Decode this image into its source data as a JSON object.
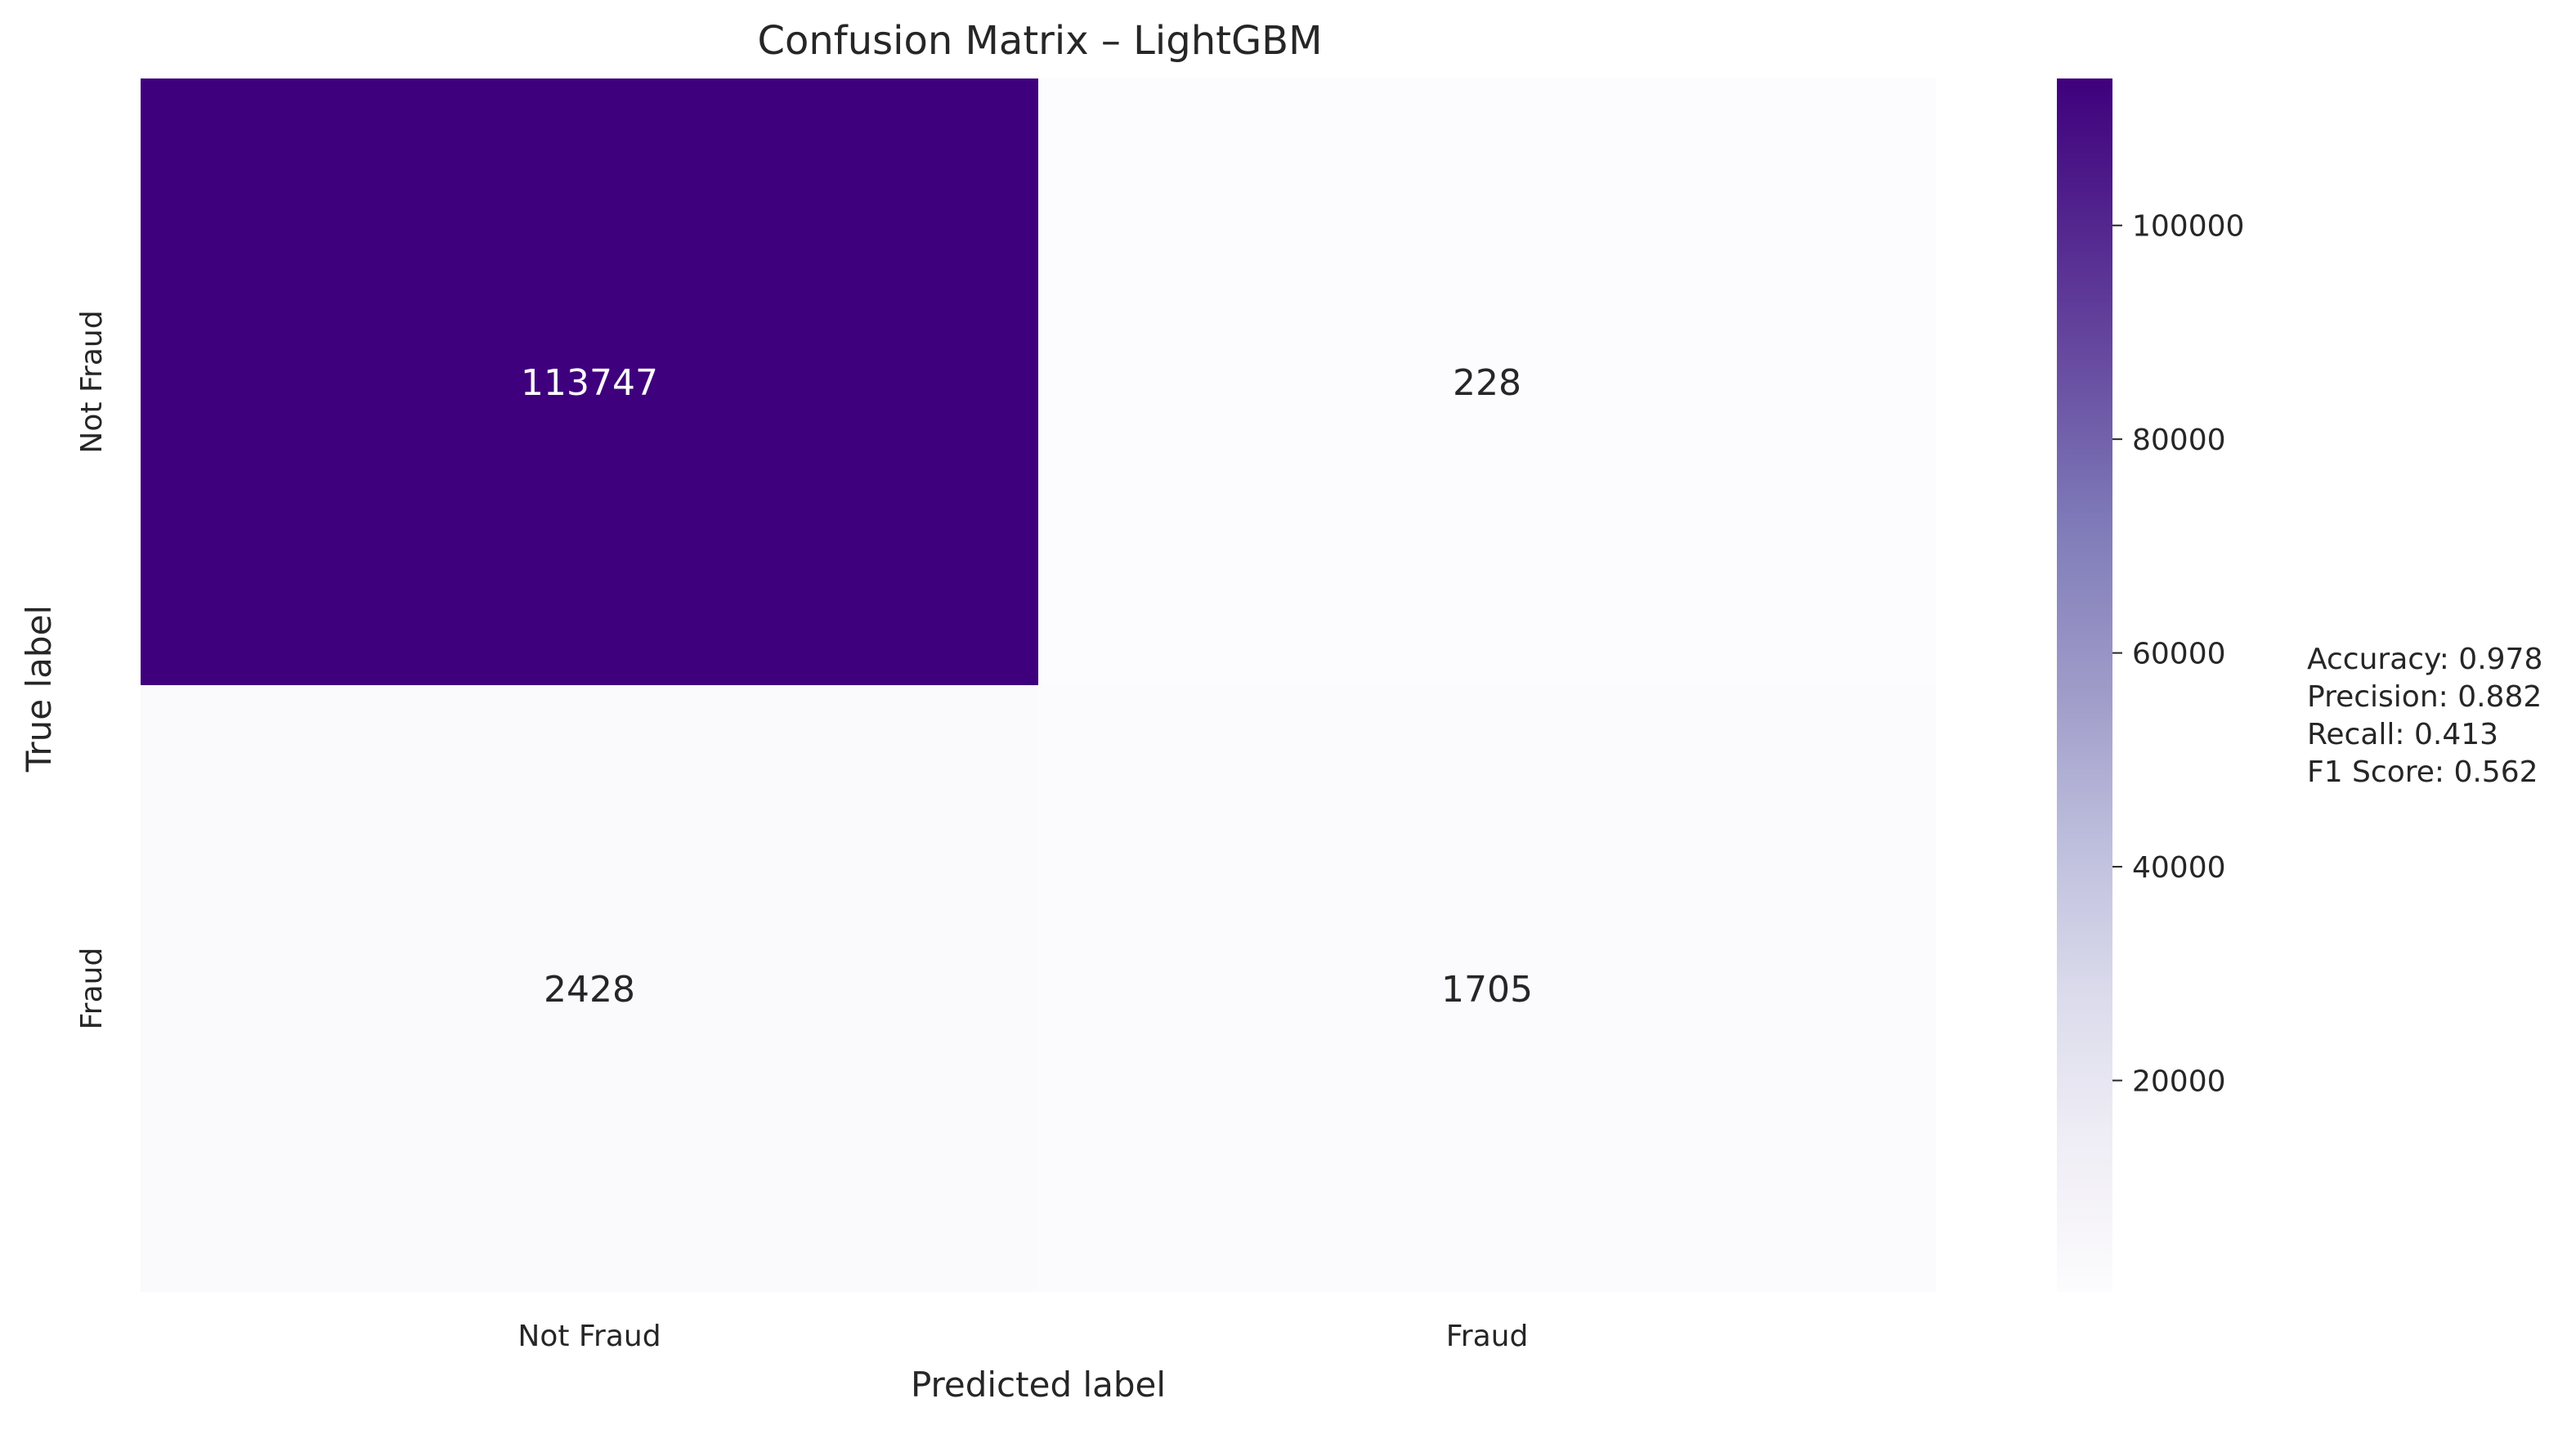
{
  "chart_data": {
    "type": "heatmap",
    "title": "Confusion Matrix – LightGBM",
    "xlabel": "Predicted label",
    "ylabel": "True label",
    "x_categories": [
      "Not Fraud",
      "Fraud"
    ],
    "y_categories": [
      "Not Fraud",
      "Fraud"
    ],
    "values": [
      [
        113747,
        228
      ],
      [
        2428,
        1705
      ]
    ],
    "cell_labels": [
      [
        "113747",
        "228"
      ],
      [
        "2428",
        "1705"
      ]
    ],
    "colormap": "Purples",
    "colorbar": {
      "range": [
        228,
        113747
      ],
      "ticks": [
        20000,
        40000,
        60000,
        80000,
        100000
      ],
      "tick_labels": [
        "20000",
        "40000",
        "60000",
        "80000",
        "100000"
      ]
    },
    "annotations": [
      "Accuracy: 0.978",
      "Precision: 0.882",
      "Recall: 0.413",
      "F1 Score: 0.562"
    ],
    "grid": false,
    "legend": "colorbar-right"
  }
}
